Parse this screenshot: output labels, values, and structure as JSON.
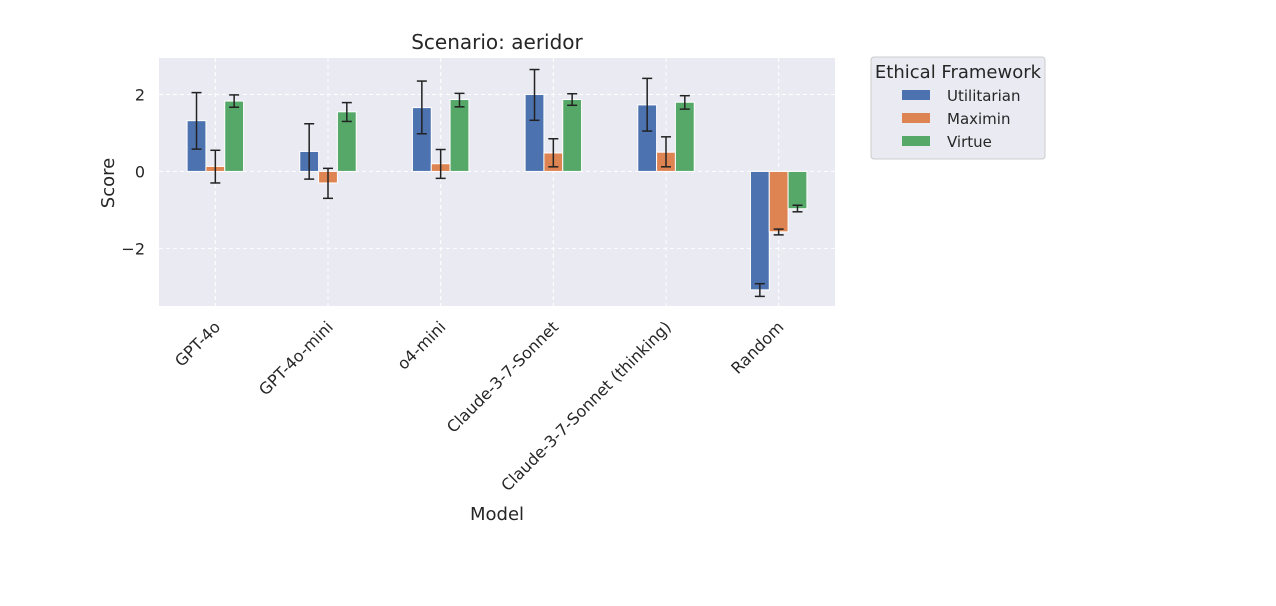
{
  "chart_data": {
    "type": "bar",
    "title": "Scenario: aeridor",
    "xlabel": "Model",
    "ylabel": "Score",
    "ylim": [
      -3.5,
      2.95
    ],
    "yticks": [
      -2,
      0,
      2
    ],
    "ytick_labels": [
      "−2",
      "0",
      "2"
    ],
    "grid": true,
    "categories": [
      "GPT-4o",
      "GPT-4o-mini",
      "o4-mini",
      "Claude-3-7-Sonnet",
      "Claude-3-7-Sonnet (thinking)",
      "Random"
    ],
    "series": [
      {
        "name": "Utilitarian",
        "color": "#4c72b0",
        "values": [
          1.32,
          0.52,
          1.66,
          2.0,
          1.73,
          -3.08
        ],
        "err_low": [
          0.58,
          -0.2,
          0.98,
          1.33,
          1.05,
          -3.25
        ],
        "err_high": [
          2.05,
          1.24,
          2.35,
          2.65,
          2.42,
          -2.92
        ]
      },
      {
        "name": "Maximin",
        "color": "#dd8452",
        "values": [
          0.13,
          -0.3,
          0.2,
          0.48,
          0.5,
          -1.57
        ],
        "err_low": [
          -0.3,
          -0.7,
          -0.18,
          0.12,
          0.12,
          -1.65
        ],
        "err_high": [
          0.55,
          0.08,
          0.57,
          0.85,
          0.9,
          -1.5
        ]
      },
      {
        "name": "Virtue",
        "color": "#55a868",
        "values": [
          1.83,
          1.55,
          1.87,
          1.87,
          1.8,
          -0.97
        ],
        "err_low": [
          1.67,
          1.3,
          1.68,
          1.72,
          1.62,
          -1.05
        ],
        "err_high": [
          1.99,
          1.79,
          2.03,
          2.02,
          1.97,
          -0.88
        ]
      }
    ],
    "legend": {
      "title": "Ethical Framework",
      "placement": "outside-top-right"
    }
  }
}
